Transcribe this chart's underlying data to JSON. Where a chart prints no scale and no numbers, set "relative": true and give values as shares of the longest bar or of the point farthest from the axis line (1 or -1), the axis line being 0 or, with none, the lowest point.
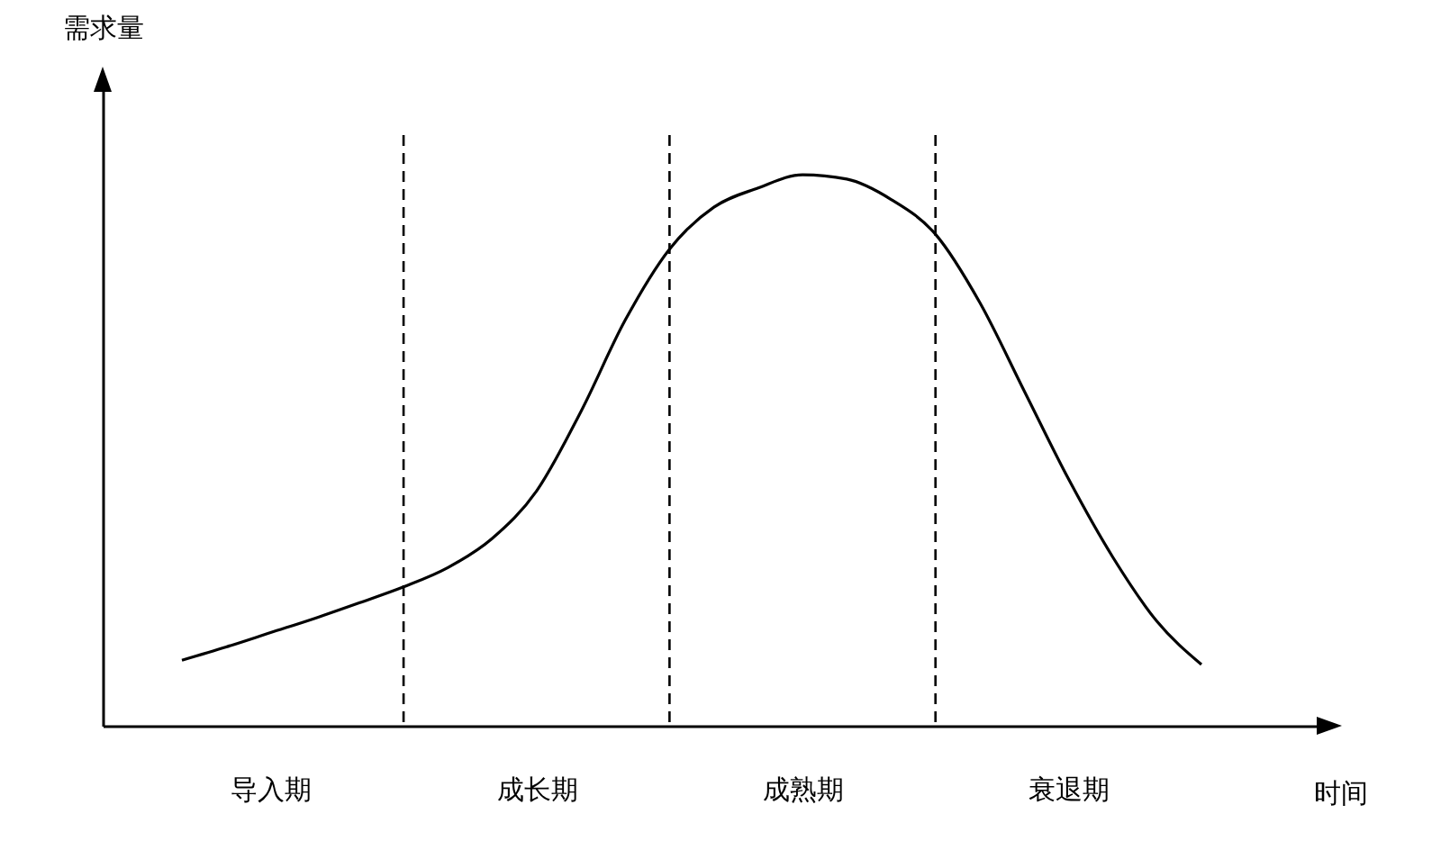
{
  "chart_data": {
    "type": "line",
    "ylabel": "需求量",
    "xlabel": "时间",
    "relative": true,
    "categories": [
      null,
      null,
      "导入期",
      null,
      null,
      null,
      null,
      null,
      "成长期",
      null,
      null,
      null,
      null,
      null,
      "成熟期",
      null,
      null,
      null,
      null,
      null,
      "衰退期",
      null,
      null,
      null
    ],
    "series": [
      {
        "color": "#000000",
        "values": [
          0.119,
          0.143,
          0.169,
          0.195,
          0.223,
          0.252,
          0.287,
          0.34,
          0.426,
          0.57,
          0.736,
          0.865,
          0.941,
          0.976,
          1,
          0.992,
          0.955,
          0.892,
          0.768,
          0.608,
          0.448,
          0.306,
          0.189,
          0.111
        ]
      }
    ],
    "grid": "x",
    "line_style": "solid",
    "tick_labels": "x"
  }
}
